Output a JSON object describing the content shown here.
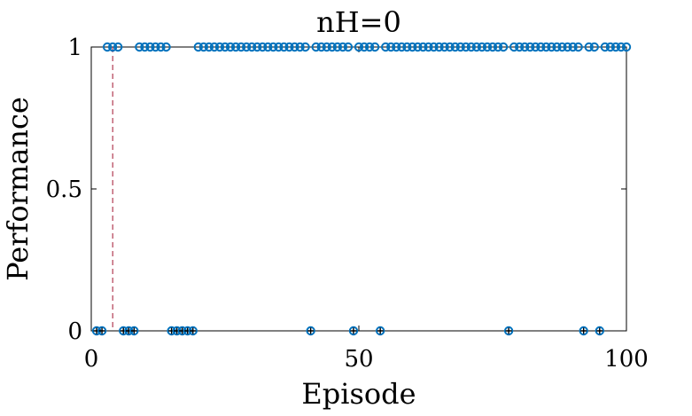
{
  "chart_data": {
    "type": "scatter",
    "title": "nH=0",
    "xlabel": "Episode",
    "ylabel": "Performance",
    "xlim": [
      0,
      100
    ],
    "ylim": [
      0,
      1
    ],
    "xticks": [
      "0",
      "50",
      "100"
    ],
    "yticks": [
      "0",
      "0.5",
      "1"
    ],
    "grid": false,
    "marker_color": "#0072BD",
    "secondary_marker_color": "#000000",
    "reference_line": {
      "x": 4,
      "color": "#A2142F",
      "style": "dashed"
    },
    "x": [
      1,
      2,
      3,
      4,
      5,
      6,
      7,
      8,
      9,
      10,
      11,
      12,
      13,
      14,
      15,
      16,
      17,
      18,
      19,
      20,
      21,
      22,
      23,
      24,
      25,
      26,
      27,
      28,
      29,
      30,
      31,
      32,
      33,
      34,
      35,
      36,
      37,
      38,
      39,
      40,
      41,
      42,
      43,
      44,
      45,
      46,
      47,
      48,
      49,
      50,
      51,
      52,
      53,
      54,
      55,
      56,
      57,
      58,
      59,
      60,
      61,
      62,
      63,
      64,
      65,
      66,
      67,
      68,
      69,
      70,
      71,
      72,
      73,
      74,
      75,
      76,
      77,
      78,
      79,
      80,
      81,
      82,
      83,
      84,
      85,
      86,
      87,
      88,
      89,
      90,
      91,
      92,
      93,
      94,
      95,
      96,
      97,
      98,
      99,
      100
    ],
    "y": [
      0,
      0,
      1,
      1,
      1,
      0,
      0,
      0,
      1,
      1,
      1,
      1,
      1,
      1,
      0,
      0,
      0,
      0,
      0,
      1,
      1,
      1,
      1,
      1,
      1,
      1,
      1,
      1,
      1,
      1,
      1,
      1,
      1,
      1,
      1,
      1,
      1,
      1,
      1,
      1,
      0,
      1,
      1,
      1,
      1,
      1,
      1,
      1,
      0,
      1,
      1,
      1,
      1,
      0,
      1,
      1,
      1,
      1,
      1,
      1,
      1,
      1,
      1,
      1,
      1,
      1,
      1,
      1,
      1,
      1,
      1,
      1,
      1,
      1,
      1,
      1,
      1,
      0,
      1,
      1,
      1,
      1,
      1,
      1,
      1,
      1,
      1,
      1,
      1,
      1,
      1,
      0,
      1,
      1,
      0,
      1,
      1,
      1,
      1,
      1
    ]
  }
}
